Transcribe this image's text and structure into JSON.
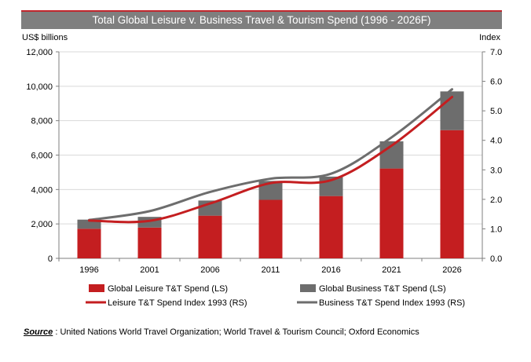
{
  "chart_data": {
    "type": "bar+line",
    "title": "Total Global Leisure v. Business Travel & Tourism Spend (1996 - 2026F)",
    "ylabel_left": "US$ billions",
    "ylabel_right": "Index",
    "ylim_left": [
      0,
      12000
    ],
    "ylim_right": [
      0,
      7
    ],
    "yticks_left": [
      "0",
      "2,000",
      "4,000",
      "6,000",
      "8,000",
      "10,000",
      "12,000"
    ],
    "yticks_right": [
      "0.0",
      "1.0",
      "2.0",
      "3.0",
      "4.0",
      "5.0",
      "6.0",
      "7.0"
    ],
    "yticks_left_values": [
      0,
      2000,
      4000,
      6000,
      8000,
      10000,
      12000
    ],
    "yticks_right_values": [
      0,
      1,
      2,
      3,
      4,
      5,
      6,
      7
    ],
    "categories": [
      "1996",
      "2001",
      "2006",
      "2011",
      "2016",
      "2021",
      "2026"
    ],
    "stacked_bars": [
      {
        "name": "Global Leisure T&T Spend (LS)",
        "color": "#c41e20",
        "values": [
          1720,
          1790,
          2480,
          3400,
          3620,
          5220,
          7450
        ]
      },
      {
        "name": "Global Business T&T Spend (LS)",
        "color": "#6d6d6d",
        "values": [
          530,
          620,
          880,
          1100,
          1130,
          1580,
          2250
        ]
      }
    ],
    "lines": [
      {
        "name": "Leisure T&T Spend Index 1993 (RS)",
        "color": "#c41e20",
        "values": [
          1.28,
          1.27,
          1.86,
          2.55,
          2.65,
          3.82,
          5.47
        ]
      },
      {
        "name": "Business T&T Spend Index 1993 (RS)",
        "color": "#6d6d6d",
        "values": [
          1.3,
          1.6,
          2.25,
          2.7,
          2.87,
          4.1,
          5.73
        ]
      }
    ],
    "legend": "bottom"
  },
  "source": {
    "label": "Source",
    "text": " : United Nations World Travel Organization; World Travel & Tourism Council; Oxford Economics"
  }
}
